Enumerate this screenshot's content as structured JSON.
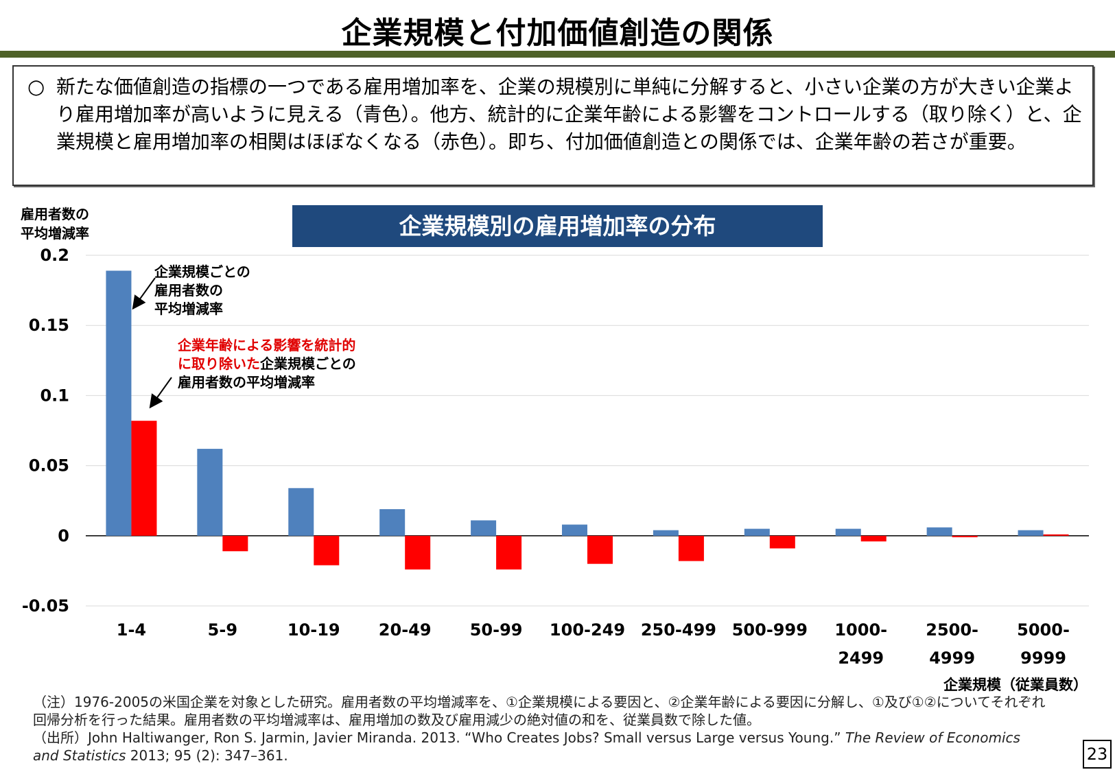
{
  "title": "企業規模と付加価値創造の関係",
  "summary": {
    "bullet": "○",
    "text": "新たな価値創造の指標の一つである雇用増加率を、企業の規模別に単純に分解すると、小さい企業の方が大きい企業より雇用増加率が高いように見える（青色）。他方、統計的に企業年齢による影響をコントロールする（取り除く）と、企業規模と雇用増加率の相関はほぼなくなる（赤色）。即ち、付加価値創造との関係では、企業年齢の若さが重要。"
  },
  "chart_data": {
    "type": "bar",
    "title": "企業規模別の雇用増加率の分布",
    "ylabel_line1": "雇用者数の",
    "ylabel_line2": "平均増減率",
    "xlabel": "企業規模（従業員数）",
    "ylim": [
      -0.05,
      0.2
    ],
    "yticks": [
      "0.2",
      "0.15",
      "0.1",
      "0.05",
      "0",
      "-0.05"
    ],
    "categories": [
      "1-4",
      "5-9",
      "10-19",
      "20-49",
      "50-99",
      "100-249",
      "250-499",
      "500-999",
      "1000-2499",
      "2500-4999",
      "5000-9999"
    ],
    "category_lines": [
      [
        "1-4"
      ],
      [
        "5-9"
      ],
      [
        "10-19"
      ],
      [
        "20-49"
      ],
      [
        "50-99"
      ],
      [
        "100-249"
      ],
      [
        "250-499"
      ],
      [
        "500-999"
      ],
      [
        "1000-",
        "2499"
      ],
      [
        "2500-",
        "4999"
      ],
      [
        "5000-",
        "9999"
      ]
    ],
    "series": [
      {
        "values": [
          0.189,
          0.062,
          0.034,
          0.019,
          0.011,
          0.008,
          0.004,
          0.005,
          0.005,
          0.006,
          0.004
        ],
        "color": "#4f81bd"
      },
      {
        "values": [
          0.082,
          -0.011,
          -0.021,
          -0.024,
          -0.024,
          -0.02,
          -0.018,
          -0.009,
          -0.004,
          -0.001,
          0.001
        ],
        "color": "#ff0000"
      }
    ],
    "annotations": {
      "blue_label": [
        "企業規模ごとの",
        "雇用者数の",
        "平均増減率"
      ],
      "red_label_red_part1": "企業年齢による影響を統計的",
      "red_label_red_part2": "に取り除いた",
      "red_label_black_part2": "企業規模ごとの",
      "red_label_line3": "雇用者数の平均増減率"
    },
    "grid": true
  },
  "note": {
    "line1": "（注）1976-2005の米国企業を対象とした研究。雇用者数の平均増減率を、①企業規模による要因と、②企業年齢による要因に分解し、①及び①②についてそれぞれ回帰分析を行った結果。雇用者数の平均増減率は、雇用増加の数及び雇用減少の絶対値の和を、従業員数で除した値。",
    "source_prefix": "（出所）John Haltiwanger, Ron S. Jarmin, Javier Miranda. 2013. “Who Creates Jobs? Small versus Large versus Young.” ",
    "source_journal": "The Review of Economics and Statistics",
    "source_suffix": " 2013; 95 (2): 347–361."
  },
  "page_number": "23"
}
